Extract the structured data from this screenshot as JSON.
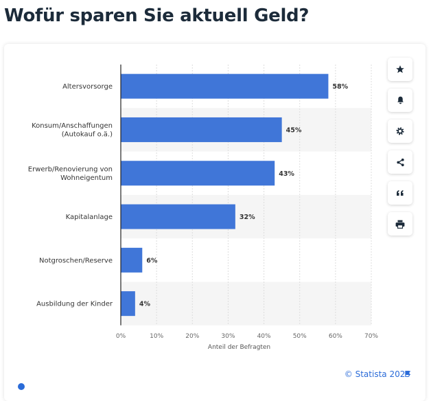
{
  "title": "Wofür sparen Sie aktuell Geld?",
  "credit": "© Statista 2025",
  "toolbar": [
    {
      "name": "star-icon"
    },
    {
      "name": "bell-icon"
    },
    {
      "name": "gear-icon"
    },
    {
      "name": "share-icon"
    },
    {
      "name": "quote-icon"
    },
    {
      "name": "print-icon"
    }
  ],
  "colors": {
    "bar": "#4076d8",
    "stripe": "#f5f5f5",
    "grid": "#dddddd",
    "title": "#1c2b3a",
    "accent": "#2a6bd8"
  },
  "chart_data": {
    "type": "bar",
    "orientation": "horizontal",
    "categories": [
      [
        "Altersvorsorge"
      ],
      [
        "Konsum/Anschaffungen",
        "(Autokauf o.ä.)"
      ],
      [
        "Erwerb/Renovierung von",
        "Wohneigentum"
      ],
      [
        "Kapitalanlage"
      ],
      [
        "Notgroschen/Reserve"
      ],
      [
        "Ausbildung der Kinder"
      ]
    ],
    "values": [
      58,
      45,
      43,
      32,
      6,
      4
    ],
    "value_labels": [
      "58%",
      "45%",
      "43%",
      "32%",
      "6%",
      "4%"
    ],
    "xlabel": "Anteil der Befragten",
    "xlim": [
      0,
      70
    ],
    "xticks": [
      "0%",
      "10%",
      "20%",
      "30%",
      "40%",
      "50%",
      "60%",
      "70%"
    ],
    "grid": true
  }
}
